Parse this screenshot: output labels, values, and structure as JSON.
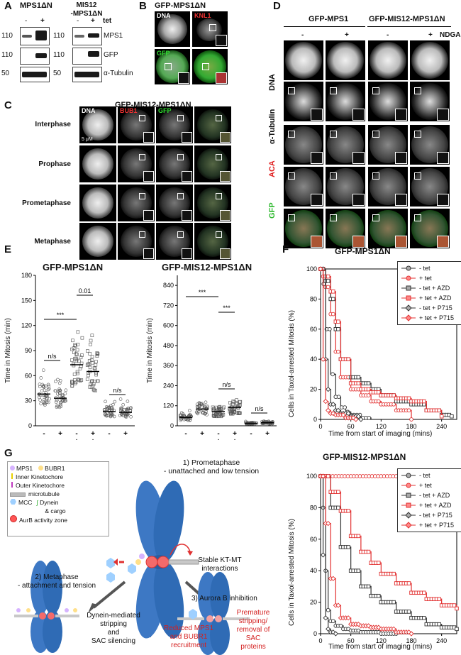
{
  "panels": {
    "A": {
      "letter": "A",
      "col1_label": "MPS1ΔN",
      "col2_label_line1": "MIS12",
      "col2_label_line2": "-MPS1ΔN",
      "tet_minus": "-",
      "tet_plus": "+",
      "tet_label": "tet",
      "rows": [
        {
          "mw": "110",
          "protein": "MPS1"
        },
        {
          "mw": "110",
          "protein": "GFP"
        },
        {
          "mw": "50",
          "protein": "α-Tubulin"
        }
      ]
    },
    "B": {
      "letter": "B",
      "title": "GFP-MPS1ΔN",
      "ch1": "DNA",
      "ch2": "KNL1",
      "ch3": "GFP"
    },
    "C": {
      "letter": "C",
      "title": "GFP-MIS12-MPS1ΔN",
      "ch_dna": "DNA",
      "ch_bub1": "BUB1",
      "ch_gfp": "GFP",
      "scale": "5 μM",
      "phases": [
        "Interphase",
        "Prophase",
        "Prometaphase",
        "Metaphase"
      ]
    },
    "D": {
      "letter": "D",
      "group1": "GFP-MPS1",
      "group2": "GFP-MIS12-MPS1ΔN",
      "cols": [
        "-",
        "+",
        "-",
        "+"
      ],
      "treatment": "NDGA",
      "rows": [
        "DNA",
        "α-Tubulin",
        "ACA",
        "GFP"
      ]
    },
    "E": {
      "letter": "E",
      "title1": "GFP-MPS1ΔN",
      "title2": "GFP-MIS12-MPS1ΔN",
      "ylabel": "Time in Mitosis (min)",
      "conds": [
        {
          "name": "tet",
          "v": [
            "-",
            "+",
            "-",
            "+",
            "-",
            "+"
          ]
        },
        {
          "name": "AZD",
          "v": [
            "-",
            "-",
            "+",
            "+",
            "-",
            "-"
          ]
        },
        {
          "name": "P715",
          "v": [
            "-",
            "-",
            "-",
            "-",
            "+",
            "+"
          ]
        }
      ],
      "sig1": [
        "***",
        "0.01",
        "n/s",
        "n/s"
      ],
      "sig2": [
        "***",
        "***",
        "n/s",
        "n/s"
      ]
    },
    "F": {
      "letter": "F",
      "title1": "GFP-MPS1ΔN",
      "title2": "GFP-MIS12-MPS1ΔN",
      "ylabel": "Cells in Taxol-arrested Mitosis (%)",
      "xlabel": "Time from start of imaging (mins)",
      "legend": [
        "- tet",
        "+ tet",
        "- tet + AZD",
        "+ tet + AZD",
        "- tet + P715",
        "+ tet + P715"
      ]
    },
    "G": {
      "letter": "G",
      "legend": {
        "mps1": "MPS1",
        "bubr1": "BUBR1",
        "inner": "Inner Kinetochore",
        "outer": "Outer Kinetochore",
        "mt": "microtubule",
        "mcc": "MCC",
        "dynein": "Dynein",
        "cargo": "& cargo",
        "aurb": "AurB activity zone"
      },
      "step1_line1": "1) Prometaphase",
      "step1_line2": "- unattached and low tension",
      "stable1": "Stable KT-MT",
      "stable2": "interactions",
      "step2_line1": "2) Metaphase",
      "step2_line2": "- attachment and tension",
      "dyn1": "Dynein-mediated",
      "dyn2": "stripping",
      "dyn3": "and",
      "dyn4": "SAC silencing",
      "step3": "3) Aurora B inhibition",
      "red1_l1": "Reduced MPS1",
      "red1_l2": "and BUBR1",
      "red1_l3": "recruitment",
      "red2_l1": "Premature",
      "red2_l2": "stripping/",
      "red2_l3": "removal of",
      "red2_l4": "SAC",
      "red2_l5": "proteins"
    }
  },
  "chart_data": [
    {
      "type": "scatter",
      "title": "GFP-MPS1ΔN",
      "ylabel": "Time in Mitosis (min)",
      "ylim": [
        0,
        180
      ],
      "yticks": [
        0,
        30,
        60,
        90,
        120,
        150,
        180
      ],
      "series": [
        {
          "name": "-tet",
          "median": 38
        },
        {
          "name": "+tet",
          "median": 33
        },
        {
          "name": "-tet +AZD",
          "median": 73
        },
        {
          "name": "+tet +AZD",
          "median": 65
        },
        {
          "name": "-tet +P715",
          "median": 17
        },
        {
          "name": "+tet +P715",
          "median": 16
        }
      ]
    },
    {
      "type": "scatter",
      "title": "GFP-MIS12-MPS1ΔN",
      "ylabel": "Time in Mitosis (min)",
      "ylim": [
        0,
        900
      ],
      "yticks": [
        0,
        120,
        240,
        360,
        480,
        600,
        720,
        840
      ],
      "series": [
        {
          "name": "-tet",
          "median": 50
        },
        {
          "name": "+tet",
          "median": 100
        },
        {
          "name": "-tet +AZD",
          "median": 85
        },
        {
          "name": "+tet +AZD",
          "median": 110
        },
        {
          "name": "-tet +P715",
          "median": 15
        },
        {
          "name": "+tet +P715",
          "median": 18
        }
      ]
    },
    {
      "type": "line",
      "title": "GFP-MPS1ΔN",
      "xlabel": "Time from start of imaging (mins)",
      "ylabel": "Cells in Taxol-arrested Mitosis (%)",
      "xlim": [
        0,
        270
      ],
      "ylim": [
        0,
        100
      ],
      "xticks": [
        0,
        60,
        120,
        180,
        240
      ],
      "yticks": [
        0,
        20,
        40,
        60,
        80,
        100
      ],
      "series": [
        {
          "name": "- tet",
          "x": [
            0,
            5,
            10,
            20,
            30,
            40,
            50,
            60,
            80,
            100
          ],
          "y": [
            100,
            90,
            60,
            30,
            15,
            8,
            5,
            3,
            1,
            0
          ]
        },
        {
          "name": "+ tet",
          "x": [
            0,
            5,
            10,
            20,
            30,
            40,
            60,
            80,
            100,
            120,
            150,
            180
          ],
          "y": [
            100,
            95,
            88,
            70,
            45,
            28,
            20,
            16,
            12,
            10,
            6,
            0
          ]
        },
        {
          "name": "- tet + AZD",
          "x": [
            0,
            10,
            20,
            30,
            40,
            60,
            80,
            100,
            120,
            150,
            180,
            210,
            240,
            260
          ],
          "y": [
            100,
            92,
            80,
            60,
            40,
            28,
            24,
            20,
            16,
            12,
            10,
            6,
            3,
            2
          ]
        },
        {
          "name": "+ tet + AZD",
          "x": [
            0,
            10,
            20,
            30,
            40,
            60,
            80,
            100,
            120,
            150,
            180,
            210,
            240
          ],
          "y": [
            100,
            95,
            85,
            65,
            40,
            24,
            20,
            18,
            16,
            14,
            12,
            6,
            2
          ]
        },
        {
          "name": "- tet + P715",
          "x": [
            0,
            10,
            15,
            20,
            30,
            40,
            60,
            80
          ],
          "y": [
            100,
            40,
            20,
            10,
            6,
            4,
            2,
            0
          ]
        },
        {
          "name": "+ tet + P715",
          "x": [
            0,
            5,
            10,
            15,
            20,
            30,
            50,
            70
          ],
          "y": [
            100,
            40,
            12,
            6,
            4,
            3,
            1,
            0
          ]
        }
      ]
    },
    {
      "type": "line",
      "title": "GFP-MIS12-MPS1ΔN",
      "xlabel": "Time from start of imaging (mins)",
      "ylabel": "Cells in Taxol-arrested Mitosis (%)",
      "xlim": [
        0,
        270
      ],
      "ylim": [
        0,
        100
      ],
      "xticks": [
        0,
        60,
        120,
        180,
        240
      ],
      "yticks": [
        0,
        20,
        40,
        60,
        80,
        100
      ],
      "series": [
        {
          "name": "- tet",
          "x": [
            0,
            5,
            10,
            15,
            20,
            30,
            45,
            60,
            80,
            100,
            120,
            150
          ],
          "y": [
            100,
            80,
            40,
            15,
            8,
            5,
            3,
            2,
            1,
            1,
            0,
            0
          ]
        },
        {
          "name": "+ tet",
          "x": [
            0,
            270
          ],
          "y": [
            100,
            100
          ]
        },
        {
          "name": "- tet + AZD",
          "x": [
            0,
            20,
            40,
            60,
            80,
            100,
            120,
            150,
            180,
            210,
            240,
            270
          ],
          "y": [
            100,
            80,
            55,
            40,
            30,
            24,
            20,
            14,
            10,
            6,
            4,
            3
          ]
        },
        {
          "name": "+ tet + AZD",
          "x": [
            0,
            20,
            40,
            60,
            80,
            100,
            120,
            150,
            180,
            210,
            240,
            270
          ],
          "y": [
            100,
            90,
            78,
            62,
            52,
            45,
            38,
            32,
            26,
            22,
            18,
            16
          ]
        },
        {
          "name": "- tet + P715",
          "x": [
            0,
            5,
            10,
            15,
            20,
            30
          ],
          "y": [
            100,
            50,
            10,
            3,
            1,
            0
          ]
        },
        {
          "name": "+ tet + P715",
          "x": [
            0,
            10,
            20,
            30,
            40,
            60,
            80,
            100,
            120,
            150,
            180
          ],
          "y": [
            100,
            70,
            35,
            18,
            10,
            6,
            5,
            4,
            3,
            1,
            0
          ]
        }
      ]
    }
  ]
}
